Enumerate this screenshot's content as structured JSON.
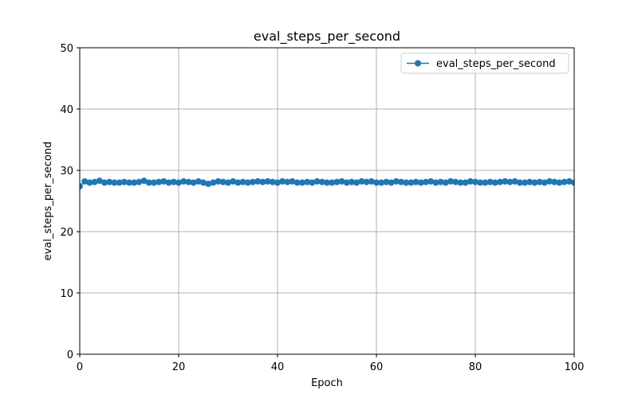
{
  "chart_data": {
    "type": "line",
    "title": "eval_steps_per_second",
    "xlabel": "Epoch",
    "ylabel": "eval_steps_per_second",
    "xlim": [
      0,
      100
    ],
    "ylim": [
      0,
      50
    ],
    "xticks": [
      0,
      20,
      40,
      60,
      80,
      100
    ],
    "yticks": [
      0,
      10,
      20,
      30,
      40,
      50
    ],
    "xtick_labels": [
      "0",
      "20",
      "40",
      "60",
      "80",
      "100"
    ],
    "ytick_labels": [
      "0",
      "10",
      "20",
      "30",
      "40",
      "50"
    ],
    "grid": true,
    "legend_position": "top-right",
    "series": [
      {
        "name": "eval_steps_per_second",
        "color": "#1f77b4",
        "marker": "circle",
        "x": [
          0,
          1,
          2,
          3,
          4,
          5,
          6,
          7,
          8,
          9,
          10,
          11,
          12,
          13,
          14,
          15,
          16,
          17,
          18,
          19,
          20,
          21,
          22,
          23,
          24,
          25,
          26,
          27,
          28,
          29,
          30,
          31,
          32,
          33,
          34,
          35,
          36,
          37,
          38,
          39,
          40,
          41,
          42,
          43,
          44,
          45,
          46,
          47,
          48,
          49,
          50,
          51,
          52,
          53,
          54,
          55,
          56,
          57,
          58,
          59,
          60,
          61,
          62,
          63,
          64,
          65,
          66,
          67,
          68,
          69,
          70,
          71,
          72,
          73,
          74,
          75,
          76,
          77,
          78,
          79,
          80,
          81,
          82,
          83,
          84,
          85,
          86,
          87,
          88,
          89,
          90,
          91,
          92,
          93,
          94,
          95,
          96,
          97,
          98,
          99,
          100
        ],
        "values": [
          27.4,
          28.2,
          28.0,
          28.1,
          28.3,
          28.0,
          28.1,
          28.0,
          28.0,
          28.1,
          28.0,
          28.0,
          28.1,
          28.3,
          28.0,
          28.0,
          28.1,
          28.2,
          28.0,
          28.1,
          28.0,
          28.2,
          28.1,
          28.0,
          28.2,
          28.0,
          27.8,
          28.0,
          28.2,
          28.1,
          28.0,
          28.2,
          28.0,
          28.1,
          28.0,
          28.1,
          28.2,
          28.1,
          28.2,
          28.1,
          28.0,
          28.2,
          28.1,
          28.2,
          28.0,
          28.0,
          28.1,
          28.0,
          28.2,
          28.1,
          28.0,
          28.0,
          28.1,
          28.2,
          28.0,
          28.1,
          28.0,
          28.2,
          28.1,
          28.2,
          28.0,
          28.0,
          28.1,
          28.0,
          28.2,
          28.1,
          28.0,
          28.0,
          28.1,
          28.0,
          28.1,
          28.2,
          28.0,
          28.1,
          28.0,
          28.2,
          28.1,
          28.0,
          28.0,
          28.2,
          28.1,
          28.0,
          28.0,
          28.1,
          28.0,
          28.1,
          28.2,
          28.1,
          28.2,
          28.0,
          28.0,
          28.1,
          28.0,
          28.1,
          28.0,
          28.2,
          28.1,
          28.0,
          28.1,
          28.2,
          28.0
        ]
      }
    ]
  }
}
